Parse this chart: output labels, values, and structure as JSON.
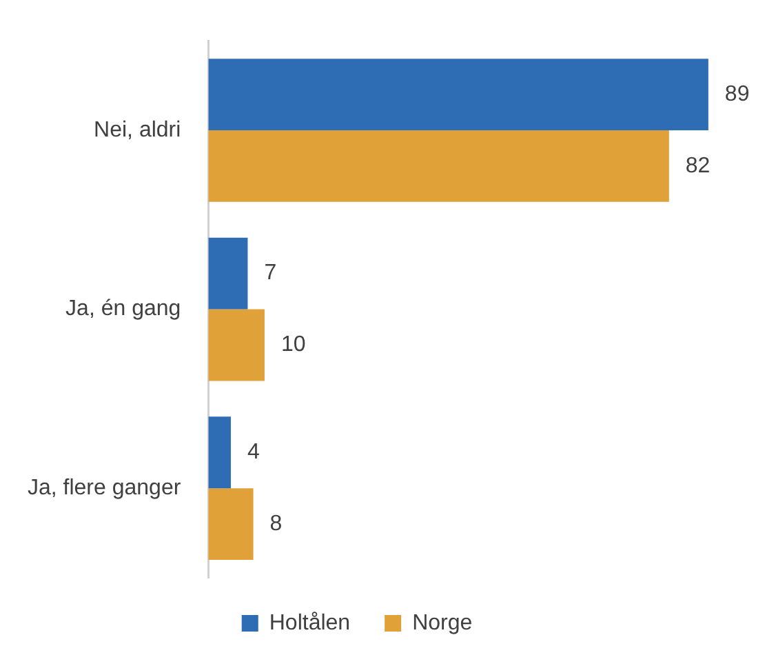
{
  "chart_data": {
    "type": "bar",
    "orientation": "horizontal",
    "categories": [
      "Nei, aldri",
      "Ja, én gang",
      "Ja, flere ganger"
    ],
    "series": [
      {
        "name": "Holtålen",
        "color": "#2e6db4",
        "values": [
          89,
          7,
          4
        ]
      },
      {
        "name": "Norge",
        "color": "#e0a139",
        "values": [
          82,
          10,
          8
        ]
      }
    ],
    "data_labels": true,
    "legend": "bottom"
  }
}
